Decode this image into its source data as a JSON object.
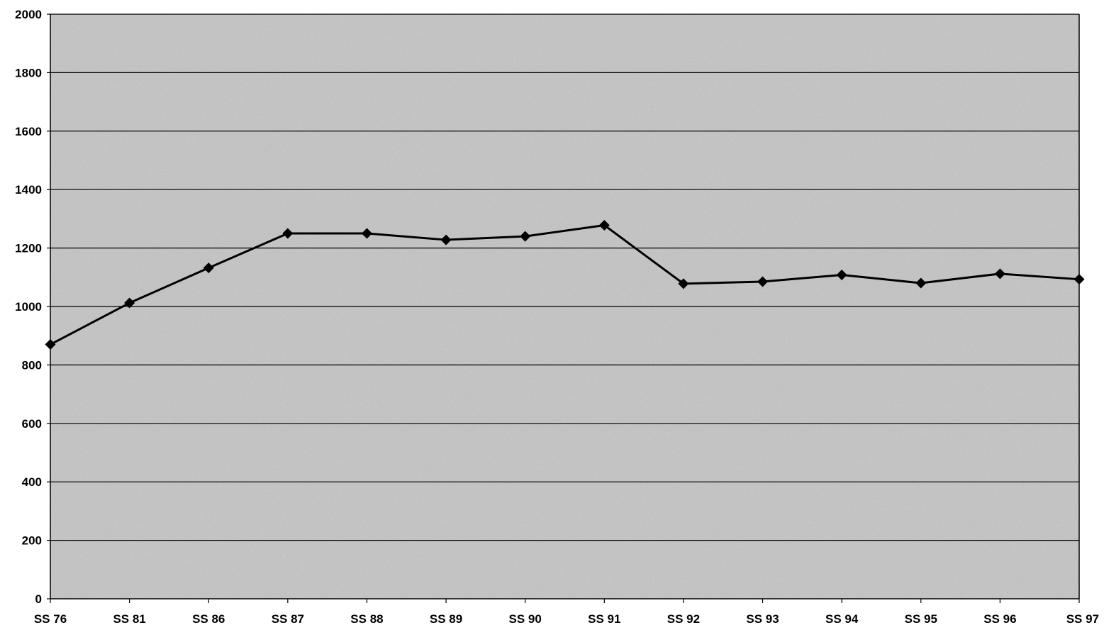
{
  "chart_data": {
    "type": "line",
    "categories": [
      "SS 76",
      "SS 81",
      "SS 86",
      "SS 87",
      "SS 88",
      "SS 89",
      "SS 90",
      "SS 91",
      "SS 92",
      "SS 93",
      "SS 94",
      "SS 95",
      "SS 96",
      "SS 97"
    ],
    "series": [
      {
        "values": [
          870,
          1012,
          1132,
          1250,
          1250,
          1228,
          1240,
          1278,
          1078,
          1085,
          1108,
          1080,
          1112,
          1093
        ],
        "color": "#000000",
        "marker": "diamond"
      }
    ],
    "title": "",
    "xlabel": "",
    "ylabel": "",
    "ylim": [
      0,
      2000
    ],
    "yticks": [
      "0",
      "200",
      "400",
      "600",
      "800",
      "1000",
      "1200",
      "1400",
      "1600",
      "1800",
      "2000"
    ],
    "grid": true,
    "legend": "none",
    "plot_background": "#c4c4c4"
  }
}
